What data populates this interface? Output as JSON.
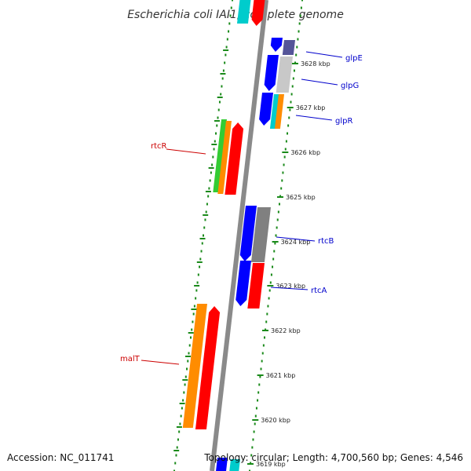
{
  "title": "Escherichia coli IAI1, complete genome",
  "footer": {
    "accession": "Accession: NC_011741",
    "summary": "Topology: circular; Length: 4,700,560 bp; Genes: 4,546"
  },
  "ticks": [
    {
      "label": "3628 kbp",
      "kbp": 3628
    },
    {
      "label": "3627 kbp",
      "kbp": 3627
    },
    {
      "label": "3626 kbp",
      "kbp": 3626
    },
    {
      "label": "3625 kbp",
      "kbp": 3625
    },
    {
      "label": "3624 kbp",
      "kbp": 3624
    },
    {
      "label": "3623 kbp",
      "kbp": 3623
    },
    {
      "label": "3622 kbp",
      "kbp": 3622
    },
    {
      "label": "3621 kbp",
      "kbp": 3621
    },
    {
      "label": "3620 kbp",
      "kbp": 3620
    },
    {
      "label": "3619 kbp",
      "kbp": 3619
    }
  ],
  "gene_labels": [
    {
      "name": "glpE",
      "side": "right",
      "color": "#0000cc"
    },
    {
      "name": "glpG",
      "side": "right",
      "color": "#0000cc"
    },
    {
      "name": "glpR",
      "side": "right",
      "color": "#0000cc"
    },
    {
      "name": "rtcR",
      "side": "left",
      "color": "#cc0000"
    },
    {
      "name": "rtcB",
      "side": "right",
      "color": "#0000cc"
    },
    {
      "name": "rtcA",
      "side": "right",
      "color": "#0000cc"
    },
    {
      "name": "malT",
      "side": "left",
      "color": "#cc0000"
    }
  ],
  "colors": {
    "backbone": "#8a8a8a",
    "ring_dots": "#1a8a1a",
    "forward": "#ff0000",
    "reverse": "#0000ff",
    "orange": "#ff8c00",
    "green": "#33cc33",
    "cyan": "#00cccc",
    "gray": "#808080",
    "lightgray": "#c8c8c8",
    "purple": "#555599"
  }
}
